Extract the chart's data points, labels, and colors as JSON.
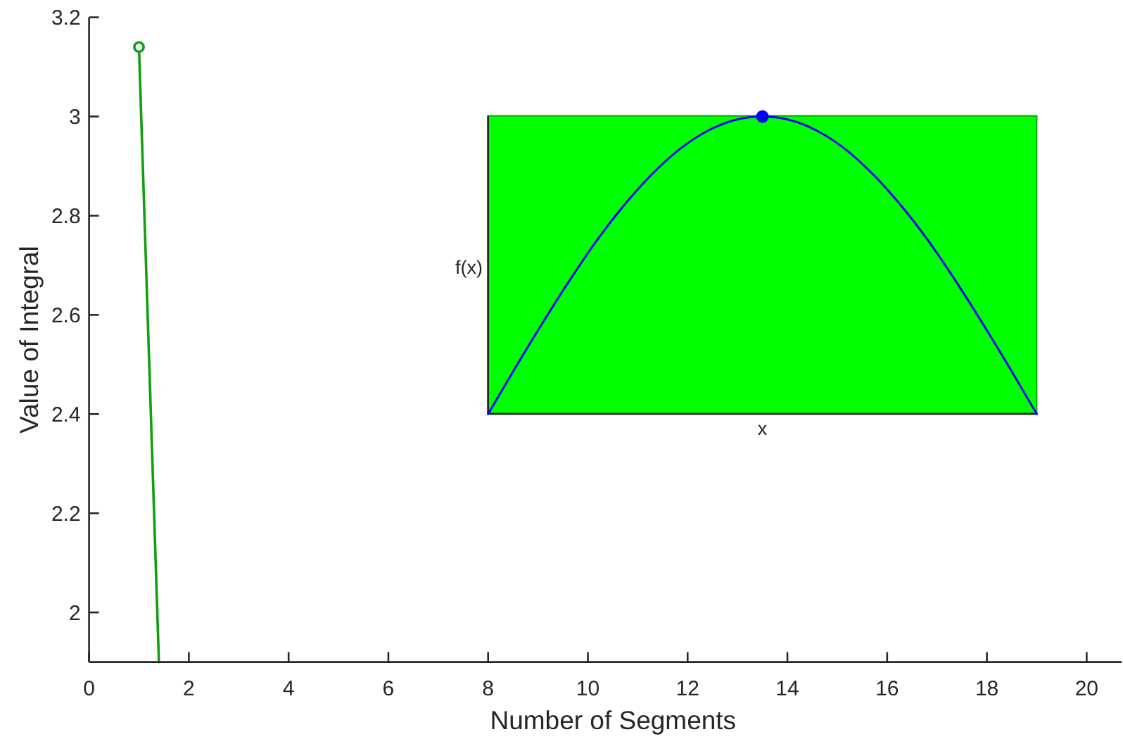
{
  "chart_data": {
    "type": "line",
    "xlabel": "Number of Segments",
    "ylabel": "Value of Integral",
    "xlim": [
      0,
      20.7
    ],
    "xticks": [
      0,
      2,
      4,
      6,
      8,
      10,
      12,
      14,
      16,
      18,
      20
    ],
    "ylim": [
      1.9,
      3.2
    ],
    "yticks": [
      2,
      2.2,
      2.4,
      2.6,
      2.8,
      3,
      3.2
    ],
    "annotations": [
      "f(x)",
      "x"
    ],
    "series": [
      {
        "color": "#119e11",
        "x": [
          1,
          1.4
        ],
        "values": [
          3.14,
          1.9
        ]
      },
      {
        "type": "scatter",
        "color": "#119e11",
        "x": [
          1
        ],
        "values": [
          3.14
        ],
        "marker": "circle"
      },
      {
        "color": "#262626",
        "x": [
          8,
          8,
          19
        ],
        "values": [
          3,
          2.4,
          2.4
        ]
      },
      {
        "color": "#0000ff",
        "x": [
          8,
          8.55,
          9.1,
          9.65,
          10.2,
          10.75,
          11.3,
          11.85,
          12.4,
          12.95,
          13.5,
          14.05,
          14.6,
          15.15,
          15.7,
          16.25,
          16.8,
          17.35,
          17.9,
          18.45,
          19
        ],
        "values": [
          2.4,
          2.494,
          2.585,
          2.672,
          2.753,
          2.824,
          2.885,
          2.935,
          2.971,
          2.993,
          3,
          2.993,
          2.971,
          2.935,
          2.885,
          2.824,
          2.753,
          2.672,
          2.585,
          2.494,
          2.4
        ]
      },
      {
        "type": "scatter",
        "color": "#0000ff",
        "x": [
          13.5
        ],
        "values": [
          3
        ],
        "marker": "circle"
      }
    ]
  }
}
